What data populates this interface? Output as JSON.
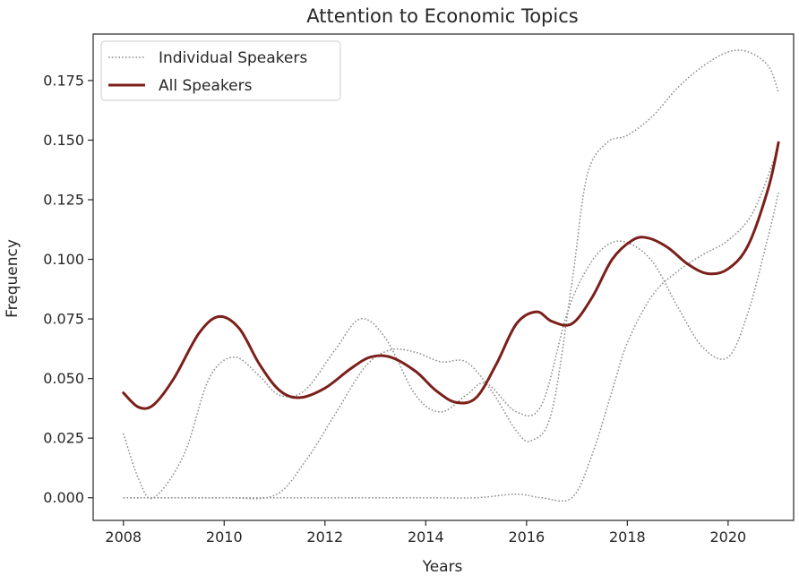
{
  "chart_data": {
    "type": "line",
    "title": "Attention to Economic Topics",
    "xlabel": "Years",
    "ylabel": "Frequency",
    "xlim": [
      2007.4,
      2021.3
    ],
    "ylim": [
      -0.0095,
      0.1945
    ],
    "grid": false,
    "legend_position": "top-left",
    "x_ticks": [
      2008,
      2010,
      2012,
      2014,
      2016,
      2018,
      2020
    ],
    "x_tick_labels": [
      "2008",
      "2010",
      "2012",
      "2014",
      "2016",
      "2018",
      "2020"
    ],
    "y_ticks": [
      0,
      0.025,
      0.05,
      0.075,
      0.1,
      0.125,
      0.15,
      0.175
    ],
    "y_tick_labels": [
      "0.000",
      "0.025",
      "0.050",
      "0.075",
      "0.100",
      "0.125",
      "0.150",
      "0.175"
    ],
    "legend": [
      {
        "label": "Individual Speakers",
        "style": "dotted",
        "color": "#8c8c8c"
      },
      {
        "label": "All Speakers",
        "style": "solid",
        "color": "#7b1f1a"
      }
    ],
    "series": [
      {
        "style": "dotted",
        "color": "#8c8c8c",
        "x": [
          2008,
          2008.3,
          2008.6,
          2009.2,
          2009.7,
          2010.2,
          2010.7,
          2011.1,
          2011.6,
          2012.2,
          2012.7,
          2013.2,
          2013.8,
          2014.3,
          2014.8,
          2015.2,
          2015.8,
          2016.3,
          2016.8,
          2017.2,
          2017.6,
          2018.0,
          2018.5,
          2019.0,
          2019.5,
          2020.0,
          2020.4,
          2020.8,
          2021.0
        ],
        "y": [
          0.027,
          0.008,
          0.0,
          0.018,
          0.05,
          0.059,
          0.051,
          0.043,
          0.045,
          0.062,
          0.075,
          0.067,
          0.043,
          0.036,
          0.043,
          0.048,
          0.036,
          0.039,
          0.077,
          0.096,
          0.106,
          0.107,
          0.099,
          0.08,
          0.063,
          0.059,
          0.078,
          0.11,
          0.128
        ]
      },
      {
        "style": "dotted",
        "color": "#8c8c8c",
        "x": [
          2008,
          2009,
          2010,
          2011,
          2011.6,
          2012.2,
          2012.8,
          2013.3,
          2013.8,
          2014.3,
          2014.8,
          2015.3,
          2015.8,
          2016.1,
          2016.5,
          2016.9,
          2017.2,
          2017.6,
          2018.0,
          2018.5,
          2019.0,
          2019.5,
          2020.0,
          2020.4,
          2020.8,
          2021.0
        ],
        "y": [
          0.0,
          0.0,
          0.0,
          0.001,
          0.015,
          0.035,
          0.055,
          0.062,
          0.061,
          0.057,
          0.057,
          0.045,
          0.028,
          0.024,
          0.036,
          0.09,
          0.135,
          0.149,
          0.152,
          0.16,
          0.172,
          0.181,
          0.187,
          0.187,
          0.181,
          0.17
        ]
      },
      {
        "style": "dotted",
        "color": "#8c8c8c",
        "x": [
          2008,
          2010,
          2012,
          2014,
          2015,
          2015.8,
          2016.3,
          2016.9,
          2017.3,
          2017.7,
          2018.0,
          2018.5,
          2019.0,
          2019.5,
          2020.0,
          2020.5,
          2021.0
        ],
        "y": [
          0.0,
          0.0,
          0.0,
          0.0,
          0.0,
          0.0015,
          0.0,
          0.0,
          0.018,
          0.045,
          0.065,
          0.085,
          0.095,
          0.102,
          0.108,
          0.12,
          0.147
        ]
      },
      {
        "name": "All Speakers",
        "style": "solid",
        "color": "#7b1f1a",
        "x": [
          2008,
          2008.3,
          2008.6,
          2009.0,
          2009.5,
          2009.9,
          2010.3,
          2010.7,
          2011.1,
          2011.5,
          2012.0,
          2012.5,
          2012.9,
          2013.3,
          2013.8,
          2014.2,
          2014.6,
          2015.0,
          2015.4,
          2015.8,
          2016.2,
          2016.5,
          2016.9,
          2017.3,
          2017.7,
          2018.1,
          2018.4,
          2018.8,
          2019.2,
          2019.6,
          2020.0,
          2020.4,
          2020.8,
          2021.0
        ],
        "y": [
          0.044,
          0.038,
          0.039,
          0.05,
          0.069,
          0.076,
          0.071,
          0.056,
          0.045,
          0.042,
          0.046,
          0.054,
          0.059,
          0.059,
          0.053,
          0.045,
          0.04,
          0.042,
          0.056,
          0.073,
          0.078,
          0.074,
          0.073,
          0.084,
          0.1,
          0.108,
          0.109,
          0.105,
          0.098,
          0.094,
          0.096,
          0.106,
          0.13,
          0.149
        ]
      }
    ]
  }
}
